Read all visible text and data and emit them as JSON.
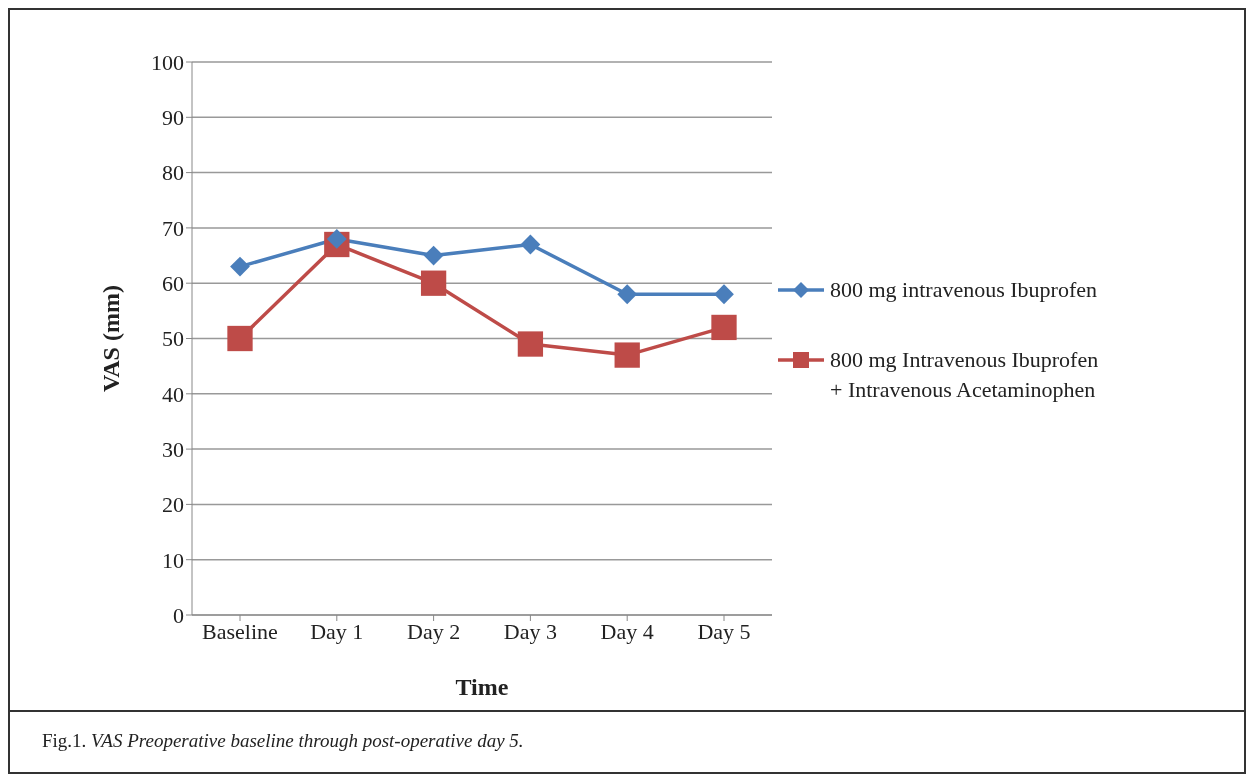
{
  "chart_data": {
    "type": "line",
    "xlabel": "Time",
    "ylabel": "VAS (mm)",
    "categories": [
      "Baseline",
      "Day 1",
      "Day 2",
      "Day 3",
      "Day 4",
      "Day 5"
    ],
    "series": [
      {
        "name": "800 mg intravenous Ibuprofen",
        "color": "#4a7ebb",
        "marker": "diamond",
        "values": [
          63,
          68,
          65,
          67,
          58,
          58
        ]
      },
      {
        "name": "800 mg Intravenous Ibuprofen + Intravenous Acetaminophen",
        "color": "#be4b48",
        "marker": "square",
        "values": [
          50,
          67,
          60,
          49,
          47,
          52
        ]
      }
    ],
    "ylim": [
      0,
      100
    ],
    "yticks": [
      0,
      10,
      20,
      30,
      40,
      50,
      60,
      70,
      80,
      90,
      100
    ],
    "grid": "y",
    "legend": "right",
    "line_style": "solid",
    "annotations": [
      "Fig.1. VAS Preoperative baseline through post-operative day 5."
    ]
  }
}
